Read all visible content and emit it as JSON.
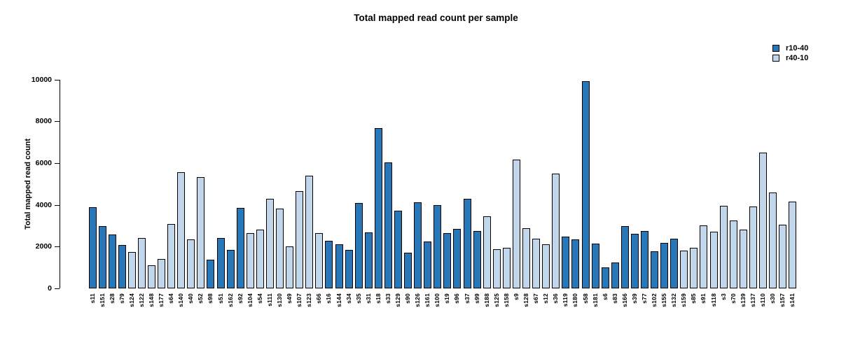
{
  "title": "Total mapped read count per sample",
  "legend": {
    "items": [
      {
        "label": "r10-40",
        "color": "#2878b9"
      },
      {
        "label": "r40-10",
        "color": "#c2d6eb"
      }
    ]
  },
  "chart_data": {
    "type": "bar",
    "title": "Total mapped read count per sample",
    "xlabel": "",
    "ylabel": "Total mapped read count",
    "ylim": [
      0,
      10000
    ],
    "yticks": [
      0,
      2000,
      4000,
      6000,
      8000,
      10000
    ],
    "grid": false,
    "legend_position": "top-right",
    "series_colors": {
      "r10-40": "#2878b9",
      "r40-10": "#c2d6eb"
    },
    "samples": [
      {
        "label": "s11",
        "group": "r10-40",
        "value": 3900
      },
      {
        "label": "s151",
        "group": "r10-40",
        "value": 2970
      },
      {
        "label": "s28",
        "group": "r10-40",
        "value": 2580
      },
      {
        "label": "s79",
        "group": "r10-40",
        "value": 2080
      },
      {
        "label": "s124",
        "group": "r40-10",
        "value": 1750
      },
      {
        "label": "s122",
        "group": "r40-10",
        "value": 2400
      },
      {
        "label": "s148",
        "group": "r40-10",
        "value": 1100
      },
      {
        "label": "s177",
        "group": "r40-10",
        "value": 1420
      },
      {
        "label": "s64",
        "group": "r40-10",
        "value": 3090
      },
      {
        "label": "s140",
        "group": "r40-10",
        "value": 5560
      },
      {
        "label": "s40",
        "group": "r40-10",
        "value": 2350
      },
      {
        "label": "s52",
        "group": "r40-10",
        "value": 5320
      },
      {
        "label": "s98",
        "group": "r10-40",
        "value": 1360
      },
      {
        "label": "s51",
        "group": "r10-40",
        "value": 2420
      },
      {
        "label": "s162",
        "group": "r10-40",
        "value": 1830
      },
      {
        "label": "s92",
        "group": "r10-40",
        "value": 3840
      },
      {
        "label": "s104",
        "group": "r40-10",
        "value": 2650
      },
      {
        "label": "s54",
        "group": "r40-10",
        "value": 2800
      },
      {
        "label": "s111",
        "group": "r40-10",
        "value": 4290
      },
      {
        "label": "s130",
        "group": "r40-10",
        "value": 3820
      },
      {
        "label": "s49",
        "group": "r40-10",
        "value": 2020
      },
      {
        "label": "s107",
        "group": "r40-10",
        "value": 4650
      },
      {
        "label": "s123",
        "group": "r40-10",
        "value": 5380
      },
      {
        "label": "s66",
        "group": "r40-10",
        "value": 2650
      },
      {
        "label": "s16",
        "group": "r10-40",
        "value": 2280
      },
      {
        "label": "s144",
        "group": "r10-40",
        "value": 2100
      },
      {
        "label": "s34",
        "group": "r10-40",
        "value": 1830
      },
      {
        "label": "s35",
        "group": "r10-40",
        "value": 4080
      },
      {
        "label": "s31",
        "group": "r10-40",
        "value": 2680
      },
      {
        "label": "s18",
        "group": "r10-40",
        "value": 7660
      },
      {
        "label": "s33",
        "group": "r10-40",
        "value": 6040
      },
      {
        "label": "s129",
        "group": "r10-40",
        "value": 3710
      },
      {
        "label": "s90",
        "group": "r10-40",
        "value": 1710
      },
      {
        "label": "s126",
        "group": "r10-40",
        "value": 4110
      },
      {
        "label": "s161",
        "group": "r10-40",
        "value": 2230
      },
      {
        "label": "s100",
        "group": "r10-40",
        "value": 3990
      },
      {
        "label": "s19",
        "group": "r10-40",
        "value": 2650
      },
      {
        "label": "s96",
        "group": "r10-40",
        "value": 2860
      },
      {
        "label": "s37",
        "group": "r10-40",
        "value": 4280
      },
      {
        "label": "s99",
        "group": "r10-40",
        "value": 2750
      },
      {
        "label": "s188",
        "group": "r40-10",
        "value": 3460
      },
      {
        "label": "s125",
        "group": "r40-10",
        "value": 1860
      },
      {
        "label": "s158",
        "group": "r40-10",
        "value": 1930
      },
      {
        "label": "s9",
        "group": "r40-10",
        "value": 6160
      },
      {
        "label": "s128",
        "group": "r40-10",
        "value": 2870
      },
      {
        "label": "s67",
        "group": "r40-10",
        "value": 2380
      },
      {
        "label": "s12",
        "group": "r40-10",
        "value": 2110
      },
      {
        "label": "s36",
        "group": "r40-10",
        "value": 5490
      },
      {
        "label": "s119",
        "group": "r10-40",
        "value": 2480
      },
      {
        "label": "s180",
        "group": "r10-40",
        "value": 2330
      },
      {
        "label": "s58",
        "group": "r10-40",
        "value": 9930
      },
      {
        "label": "s181",
        "group": "r10-40",
        "value": 2140
      },
      {
        "label": "s6",
        "group": "r10-40",
        "value": 1000
      },
      {
        "label": "s83",
        "group": "r10-40",
        "value": 1250
      },
      {
        "label": "s166",
        "group": "r10-40",
        "value": 2970
      },
      {
        "label": "s39",
        "group": "r10-40",
        "value": 2600
      },
      {
        "label": "s77",
        "group": "r10-40",
        "value": 2760
      },
      {
        "label": "s102",
        "group": "r10-40",
        "value": 1770
      },
      {
        "label": "s155",
        "group": "r10-40",
        "value": 2170
      },
      {
        "label": "s132",
        "group": "r10-40",
        "value": 2390
      },
      {
        "label": "s159",
        "group": "r40-10",
        "value": 1820
      },
      {
        "label": "s85",
        "group": "r40-10",
        "value": 1930
      },
      {
        "label": "s91",
        "group": "r40-10",
        "value": 3030
      },
      {
        "label": "s118",
        "group": "r40-10",
        "value": 2710
      },
      {
        "label": "s3",
        "group": "r40-10",
        "value": 3940
      },
      {
        "label": "s70",
        "group": "r40-10",
        "value": 3250
      },
      {
        "label": "s139",
        "group": "r40-10",
        "value": 2800
      },
      {
        "label": "s137",
        "group": "r40-10",
        "value": 3910
      },
      {
        "label": "s110",
        "group": "r40-10",
        "value": 6490
      },
      {
        "label": "s30",
        "group": "r40-10",
        "value": 4580
      },
      {
        "label": "s157",
        "group": "r40-10",
        "value": 3050
      },
      {
        "label": "s141",
        "group": "r40-10",
        "value": 4140
      }
    ]
  }
}
